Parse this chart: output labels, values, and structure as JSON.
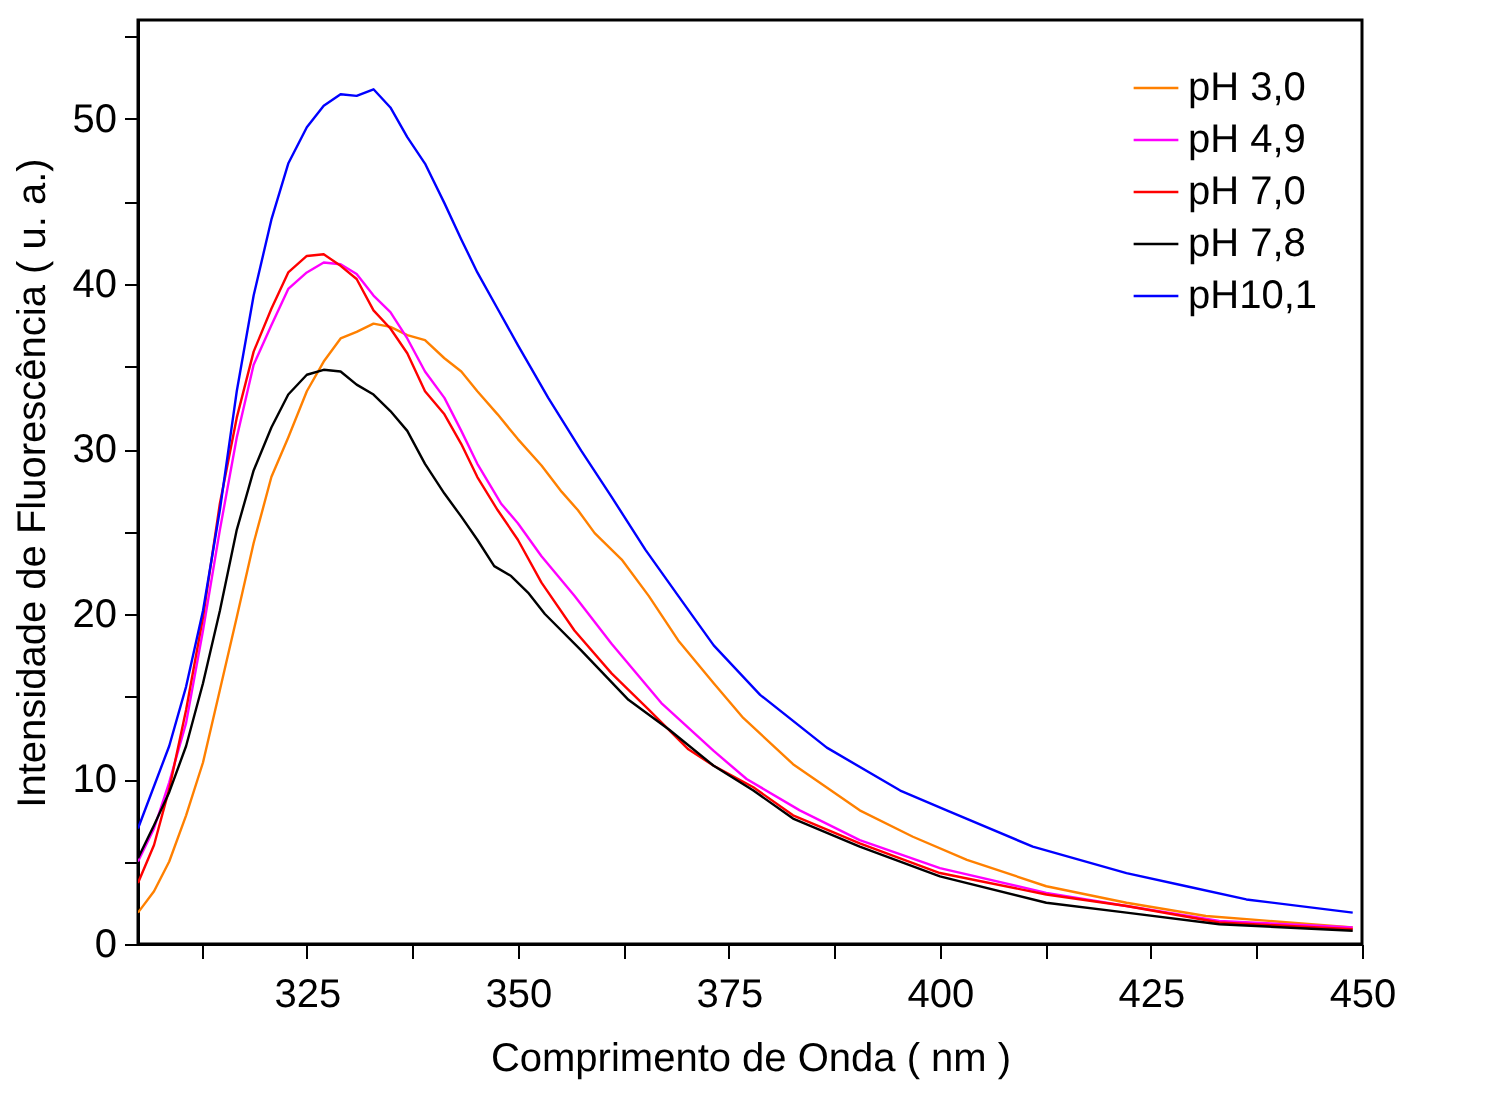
{
  "chart_data": {
    "type": "line",
    "xlabel": "Comprimento de Onda ( nm )",
    "ylabel": "Intensidade de Fluorescência ( u. a.)",
    "xlim": [
      305,
      450
    ],
    "ylim": [
      0,
      56
    ],
    "xticks": [
      {
        "value": 312.5,
        "label": null
      },
      325,
      {
        "value": 337.5,
        "label": null
      },
      350,
      {
        "value": 362.5,
        "label": null
      },
      375,
      {
        "value": 387.5,
        "label": null
      },
      400,
      {
        "value": 412.5,
        "label": null
      },
      425,
      {
        "value": 437.5,
        "label": null
      },
      450
    ],
    "yticks": [
      0,
      {
        "value": 5,
        "label": null
      },
      10,
      {
        "value": 15,
        "label": null
      },
      20,
      {
        "value": 25,
        "label": null
      },
      30,
      {
        "value": 35,
        "label": null
      },
      40,
      {
        "value": 45,
        "label": null
      },
      50,
      {
        "value": 55,
        "label": null
      }
    ],
    "grid": false,
    "legend": "top right",
    "marker": "none",
    "line_style": "solid",
    "series": [
      {
        "name": "pH 3,0",
        "color": "#ff8000",
        "x": [
          305,
          306.9,
          308.7,
          310.7,
          312.7,
          314.7,
          316.7,
          318.7,
          320.8,
          322.8,
          325,
          327,
          329,
          330.9,
          332.9,
          334.9,
          336.9,
          339,
          341.3,
          343.3,
          345.2,
          347.6,
          350,
          352.8,
          355.2,
          357.1,
          359.1,
          362.3,
          365.5,
          369,
          373.2,
          376.7,
          382.6,
          390.5,
          396.8,
          403.2,
          412.6,
          422.1,
          431.5,
          448.9
        ],
        "values": [
          1.9,
          3.2,
          5.0,
          7.8,
          11.0,
          15.4,
          19.8,
          24.3,
          28.3,
          30.7,
          33.5,
          35.3,
          36.7,
          37.1,
          37.6,
          37.4,
          36.9,
          36.6,
          35.5,
          34.7,
          33.5,
          32.1,
          30.6,
          29.0,
          27.4,
          26.3,
          24.9,
          23.3,
          21.1,
          18.4,
          15.8,
          13.7,
          10.9,
          8.1,
          6.5,
          5.1,
          3.5,
          2.5,
          1.7,
          1.0
        ]
      },
      {
        "name": "pH 4,9",
        "color": "#ff00ff",
        "x": [
          305,
          306.9,
          308.7,
          310.7,
          312.7,
          314.7,
          316.7,
          318.7,
          320.8,
          322.8,
          325,
          327,
          329,
          330.9,
          332.9,
          334.9,
          336.9,
          339,
          341.3,
          343.3,
          345.2,
          348,
          350,
          352.8,
          356.7,
          361.1,
          367,
          373.2,
          377.1,
          383.4,
          390.5,
          400,
          412.6,
          422.1,
          433.1,
          448.9
        ],
        "values": [
          5.0,
          7.0,
          9.8,
          13.4,
          19.0,
          25.1,
          30.7,
          35.1,
          37.5,
          39.7,
          40.7,
          41.3,
          41.2,
          40.6,
          39.3,
          38.3,
          36.7,
          34.7,
          33.1,
          31.1,
          29.1,
          26.7,
          25.5,
          23.5,
          21.1,
          18.2,
          14.6,
          11.7,
          10.0,
          8.1,
          6.3,
          4.6,
          3.1,
          2.3,
          1.4,
          1.0
        ]
      },
      {
        "name": "pH 7,0",
        "color": "#ff0000",
        "x": [
          305,
          306.9,
          308.7,
          310.7,
          312.7,
          314.7,
          316.7,
          318.7,
          320.8,
          322.8,
          325,
          327,
          329,
          330.9,
          332.9,
          334.9,
          336.9,
          339,
          341.3,
          343.3,
          345.2,
          347.6,
          350,
          352.8,
          356.7,
          361.1,
          365.5,
          370.2,
          373.2,
          377.9,
          382.6,
          390.5,
          400,
          412.6,
          422.1,
          433.1,
          448.9
        ],
        "values": [
          3.7,
          6.0,
          9.4,
          14.2,
          19.8,
          26.7,
          31.9,
          35.9,
          38.5,
          40.7,
          41.7,
          41.8,
          41.1,
          40.3,
          38.4,
          37.3,
          35.8,
          33.5,
          32.1,
          30.3,
          28.3,
          26.3,
          24.5,
          21.9,
          19.0,
          16.4,
          14.2,
          11.8,
          10.8,
          9.5,
          7.8,
          6.1,
          4.3,
          3.0,
          2.3,
          1.3,
          0.9
        ]
      },
      {
        "name": "pH 7,8",
        "color": "#000000",
        "x": [
          305,
          306.9,
          308.7,
          310.7,
          312.7,
          314.7,
          316.7,
          318.7,
          320.8,
          322.8,
          325,
          327,
          329,
          330.9,
          332.9,
          334.9,
          336.9,
          339,
          341.3,
          343.3,
          345.2,
          347.2,
          349.2,
          351.2,
          353.2,
          357.5,
          363.1,
          367.9,
          373.2,
          377.9,
          382.6,
          390.5,
          400,
          412.6,
          422.1,
          433.1,
          448.9
        ],
        "values": [
          5.2,
          7.2,
          9.2,
          12.0,
          15.8,
          20.2,
          25.1,
          28.7,
          31.3,
          33.3,
          34.5,
          34.8,
          34.7,
          33.9,
          33.3,
          32.3,
          31.1,
          29.1,
          27.3,
          25.9,
          24.5,
          22.9,
          22.3,
          21.3,
          20.0,
          17.8,
          14.8,
          13.0,
          10.8,
          9.3,
          7.6,
          5.9,
          4.1,
          2.5,
          1.9,
          1.2,
          0.8
        ]
      },
      {
        "name": "pH10,1",
        "color": "#0000ff",
        "x": [
          305,
          308.7,
          310.7,
          312.7,
          314.7,
          316.7,
          318.7,
          320.8,
          322.8,
          325,
          327,
          329,
          330.9,
          332.9,
          334.9,
          336.9,
          339,
          341.3,
          343.3,
          345.2,
          347.6,
          350,
          353.6,
          357.5,
          361.1,
          365.1,
          369,
          373.2,
          378.7,
          386.6,
          395.3,
          400.8,
          411,
          422.1,
          429.2,
          436.3,
          448.9
        ],
        "values": [
          7.0,
          12.0,
          15.6,
          20.2,
          26.3,
          33.5,
          39.3,
          43.9,
          47.3,
          49.5,
          50.8,
          51.5,
          51.4,
          51.8,
          50.7,
          48.9,
          47.3,
          44.9,
          42.7,
          40.7,
          38.5,
          36.3,
          33.1,
          29.9,
          27.1,
          23.9,
          21.1,
          18.1,
          15.1,
          11.9,
          9.3,
          8.1,
          5.9,
          4.3,
          3.5,
          2.7,
          1.9
        ]
      }
    ]
  }
}
